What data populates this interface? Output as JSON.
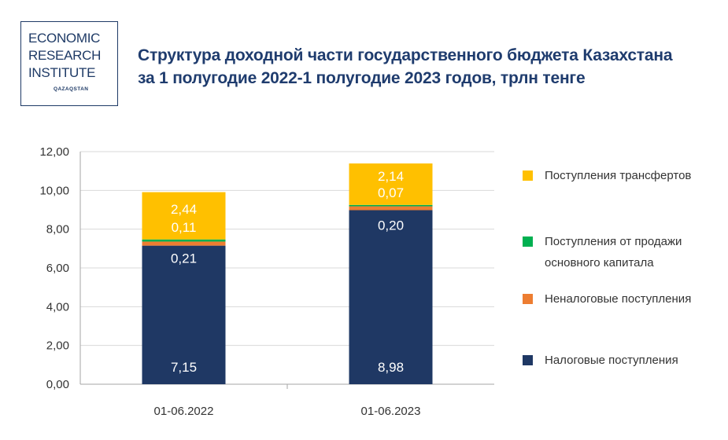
{
  "logo": {
    "lines": [
      "ECONOMIC",
      "RESEARCH",
      "INSTITUTE"
    ],
    "sub": "QAZAQSTAN"
  },
  "title": {
    "line1": "Структура доходной части государственного бюджета Казахстана",
    "line2": "за 1 полугодие 2022-1 полугодие 2023 годов, трлн тенге"
  },
  "legend": {
    "items": [
      {
        "label": "Поступления трансфертов",
        "color": "#ffc000"
      },
      {
        "label": "Поступления от продажи основного капитала",
        "color": "#00b050"
      },
      {
        "label": "Неналоговые поступления",
        "color": "#ed7d31"
      },
      {
        "label": "Налоговые поступления",
        "color": "#1f3864"
      }
    ]
  },
  "chart_data": {
    "type": "bar",
    "stacked": true,
    "categories": [
      "01-06.2022",
      "01-06.2023"
    ],
    "ylim": [
      0,
      12
    ],
    "yticks": [
      "0,00",
      "2,00",
      "4,00",
      "6,00",
      "8,00",
      "10,00",
      "12,00"
    ],
    "grid": true,
    "legend_position": "right",
    "series": [
      {
        "name": "Налоговые поступления",
        "color": "#1f3864",
        "values": [
          7.15,
          8.98
        ],
        "labels": [
          "7,15",
          "8,98"
        ]
      },
      {
        "name": "Неналоговые поступления",
        "color": "#ed7d31",
        "values": [
          0.21,
          0.2
        ],
        "labels": [
          "0,21",
          "0,20"
        ]
      },
      {
        "name": "Поступления от продажи основного капитала",
        "color": "#00b050",
        "values": [
          0.11,
          0.07
        ],
        "labels": [
          "0,11",
          "0,07"
        ]
      },
      {
        "name": "Поступления трансфертов",
        "color": "#ffc000",
        "values": [
          2.44,
          2.14
        ],
        "labels": [
          "2,44",
          "2,14"
        ]
      }
    ]
  }
}
